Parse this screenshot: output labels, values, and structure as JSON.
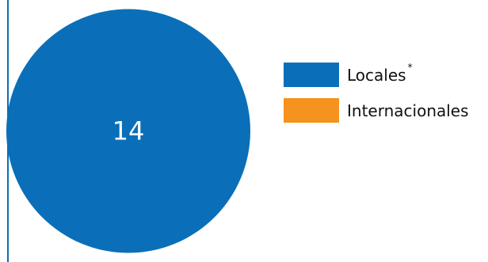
{
  "chart_data": {
    "type": "pie",
    "title": "",
    "labels": [
      "Locales",
      "Internacionales"
    ],
    "values": [
      14,
      0
    ],
    "colors": [
      "#0a6fb8",
      "#f6921e"
    ],
    "data_labels": [
      "14",
      ""
    ],
    "legend_position": "right",
    "legend_marks": [
      "*",
      ""
    ]
  }
}
